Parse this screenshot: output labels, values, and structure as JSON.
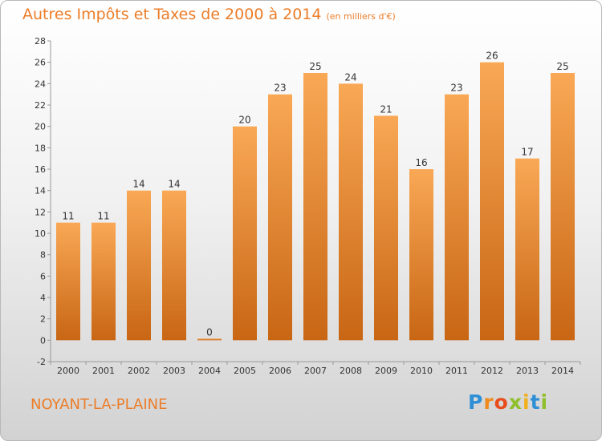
{
  "header": {
    "title": "Autres Impôts et Taxes de 2000 à 2014",
    "subtitle": "(en milliers d'€)"
  },
  "footer": {
    "commune": "NOYANT-LA-PLAINE",
    "logo_letters": [
      "P",
      "r",
      "o",
      "x",
      "i",
      "t",
      "i"
    ]
  },
  "colors": {
    "title": "#ec7d28",
    "bar_top": "#f9a855",
    "bar_bottom": "#c86614",
    "logo_letters": [
      "#2e8fd6",
      "#f08a1e",
      "#e84c1c",
      "#8fbf2a",
      "#f0b01e",
      "#2e8fd6",
      "#8fbf2a"
    ]
  },
  "chart_data": {
    "type": "bar",
    "title": "Autres Impôts et Taxes de 2000 à 2014",
    "categories": [
      "2000",
      "2001",
      "2002",
      "2003",
      "2004",
      "2005",
      "2006",
      "2007",
      "2008",
      "2009",
      "2010",
      "2011",
      "2012",
      "2013",
      "2014"
    ],
    "values": [
      11,
      11,
      14,
      14,
      0,
      20,
      23,
      25,
      24,
      21,
      16,
      23,
      26,
      17,
      25
    ],
    "ylim": [
      -2,
      28
    ],
    "yticks": [
      -2,
      0,
      2,
      4,
      6,
      8,
      10,
      12,
      14,
      16,
      18,
      20,
      22,
      24,
      26,
      28
    ],
    "grid": false,
    "legend": "none"
  }
}
